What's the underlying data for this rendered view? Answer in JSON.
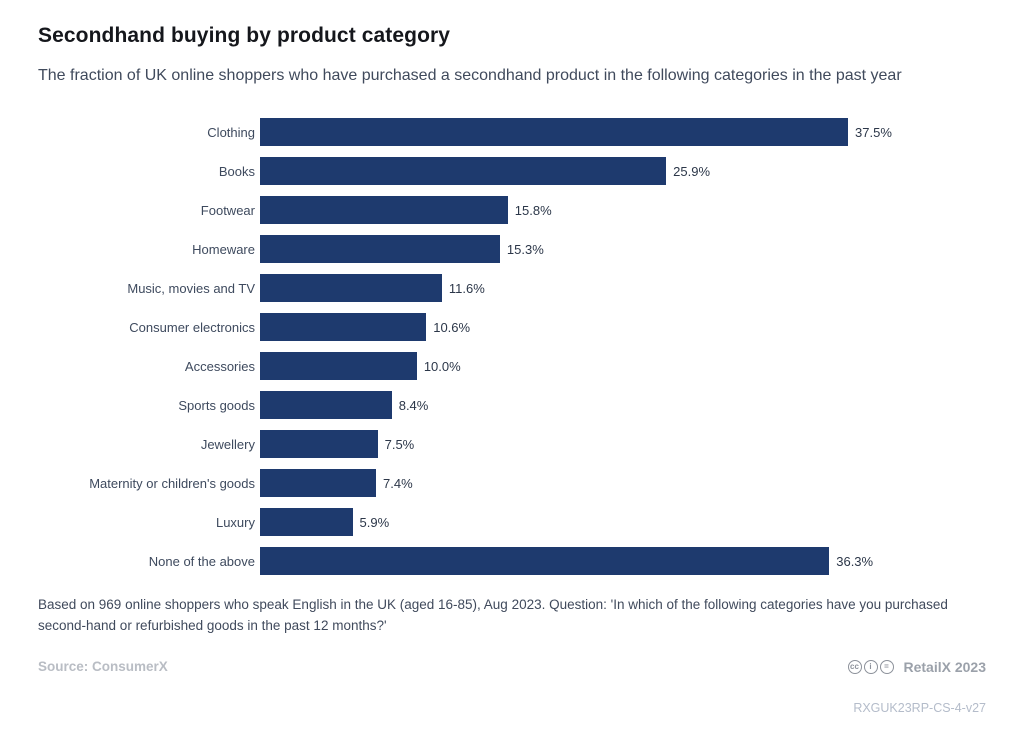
{
  "header": {
    "title": "Secondhand buying by product category",
    "subtitle": "The fraction of UK online shoppers who have purchased a secondhand product in the following categories in the past year"
  },
  "chart_data": {
    "type": "bar",
    "orientation": "horizontal",
    "title": "Secondhand buying by product category",
    "xlabel": "",
    "ylabel": "",
    "xlim": [
      0,
      46
    ],
    "grid": false,
    "legend": false,
    "bar_color": "#1e3a6e",
    "categories": [
      "Clothing",
      "Books",
      "Footwear",
      "Homeware",
      "Music, movies and TV",
      "Consumer electronics",
      "Accessories",
      "Sports goods",
      "Jewellery",
      "Maternity or children's goods",
      "Luxury",
      "None of the above"
    ],
    "values": [
      37.5,
      25.9,
      15.8,
      15.3,
      11.6,
      10.6,
      10.0,
      8.4,
      7.5,
      7.4,
      5.9,
      36.3
    ],
    "value_labels": [
      "37.5%",
      "25.9%",
      "15.8%",
      "15.3%",
      "11.6%",
      "10.6%",
      "10.0%",
      "8.4%",
      "7.5%",
      "7.4%",
      "5.9%",
      "36.3%"
    ]
  },
  "footer": {
    "note": "Based on 969 online shoppers who speak English in the UK (aged 16-85), Aug 2023. Question: 'In which of the following categories have you purchased second-hand or refurbished goods in the past 12 months?'",
    "source": "Source: ConsumerX",
    "branding": "RetailX 2023",
    "license_icons": [
      "cc",
      "i",
      "="
    ],
    "code": "RXGUK23RP-CS-4-v27"
  }
}
